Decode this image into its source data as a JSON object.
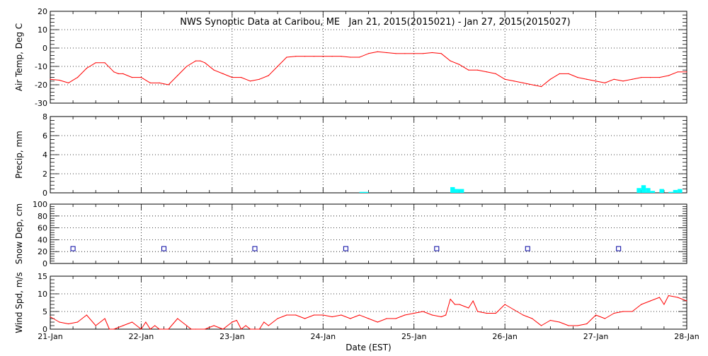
{
  "chart_data": {
    "title": "NWS Synoptic Data at Caribou, ME   Jan 21, 2015(2015021) - Jan 27, 2015(2015027)",
    "xlabel": "Date (EST)",
    "x_ticks": [
      "21-Jan",
      "22-Jan",
      "23-Jan",
      "24-Jan",
      "25-Jan",
      "26-Jan",
      "27-Jan",
      "28-Jan"
    ],
    "x_range_days": [
      21,
      28
    ],
    "grid": true,
    "panels": [
      {
        "id": "airtemp",
        "type": "line",
        "ylabel": "Air Temp, Deg C",
        "ylim": [
          -30,
          20
        ],
        "yticks": [
          20,
          10,
          0,
          -10,
          -20,
          -30
        ],
        "color": "#ff0000",
        "series": [
          {
            "x": [
              21.0,
              21.1,
              21.2,
              21.3,
              21.4,
              21.5,
              21.6,
              21.7,
              21.75,
              21.8,
              21.9,
              22.0,
              22.1,
              22.2,
              22.3,
              22.4,
              22.5,
              22.6,
              22.65,
              22.7,
              22.8,
              22.9,
              23.0,
              23.1,
              23.2,
              23.3,
              23.4,
              23.5,
              23.6,
              23.7,
              23.8,
              23.9,
              24.0,
              24.1,
              24.2,
              24.3,
              24.4,
              24.5,
              24.6,
              24.7,
              24.8,
              24.9,
              25.0,
              25.1,
              25.2,
              25.3,
              25.4,
              25.5,
              25.6,
              25.7,
              25.8,
              25.9,
              26.0,
              26.1,
              26.2,
              26.3,
              26.4,
              26.5,
              26.6,
              26.7,
              26.8,
              26.9,
              27.0,
              27.1,
              27.2,
              27.3,
              27.4,
              27.5,
              27.6,
              27.7,
              27.8,
              27.9,
              28.0
            ],
            "values": [
              -17,
              -17.5,
              -19,
              -16,
              -11,
              -8,
              -8,
              -13,
              -14,
              -14,
              -16,
              -16,
              -19,
              -19,
              -20,
              -15,
              -10,
              -7,
              -7,
              -8,
              -12,
              -14,
              -16,
              -16,
              -18,
              -17,
              -15,
              -10,
              -5,
              -4.5,
              -4.5,
              -4.5,
              -4.5,
              -4.5,
              -4.5,
              -5,
              -5,
              -3,
              -2,
              -2.5,
              -3,
              -3,
              -3,
              -3,
              -2.5,
              -3,
              -7,
              -9,
              -12,
              -12,
              -13,
              -14,
              -17,
              -18,
              -19,
              -20,
              -21,
              -17,
              -14,
              -14,
              -16,
              -17,
              -18,
              -19,
              -17,
              -18,
              -17,
              -16,
              -16,
              -16,
              -15,
              -13,
              -13
            ]
          }
        ]
      },
      {
        "id": "precip",
        "type": "bar",
        "ylabel": "Precip, mm",
        "ylim": [
          0,
          8
        ],
        "yticks": [
          8,
          6,
          4,
          2,
          0
        ],
        "color": "#00ffff",
        "bar_width_days": 0.05,
        "series": [
          {
            "x": [
              24.4,
              24.45,
              25.4,
              25.45,
              25.5,
              27.45,
              27.5,
              27.55,
              27.6,
              27.7,
              27.8,
              27.85,
              27.9
            ],
            "values": [
              0.1,
              0.1,
              0.6,
              0.4,
              0.4,
              0.5,
              0.8,
              0.5,
              0.2,
              0.4,
              0.1,
              0.3,
              0.4
            ]
          }
        ]
      },
      {
        "id": "snowdepth",
        "type": "scatter",
        "ylabel": "Snow Dep, cm",
        "ylim": [
          0,
          100
        ],
        "yticks": [
          100,
          80,
          60,
          40,
          20,
          0
        ],
        "color": "#0000a0",
        "series": [
          {
            "x": [
              21.25,
              22.25,
              23.25,
              24.25,
              25.25,
              26.25,
              27.25
            ],
            "values": [
              25,
              25,
              25,
              25,
              25,
              25,
              25
            ]
          }
        ]
      },
      {
        "id": "windspd",
        "type": "line",
        "ylabel": "Wind Spd, m/s",
        "ylim": [
          0,
          15
        ],
        "yticks": [
          15,
          10,
          5,
          0
        ],
        "color": "#ff0000",
        "series": [
          {
            "x": [
              21.0,
              21.1,
              21.2,
              21.3,
              21.4,
              21.5,
              21.6,
              21.65,
              21.7,
              21.8,
              21.9,
              22.0,
              22.05,
              22.1,
              22.15,
              22.2,
              22.3,
              22.4,
              22.5,
              22.55,
              22.6,
              22.7,
              22.8,
              22.9,
              23.0,
              23.05,
              23.1,
              23.15,
              23.2,
              23.25,
              23.3,
              23.35,
              23.4,
              23.5,
              23.6,
              23.7,
              23.8,
              23.9,
              24.0,
              24.1,
              24.2,
              24.3,
              24.4,
              24.5,
              24.6,
              24.7,
              24.8,
              24.9,
              25.0,
              25.1,
              25.2,
              25.3,
              25.35,
              25.4,
              25.45,
              25.5,
              25.6,
              25.65,
              25.7,
              25.8,
              25.9,
              26.0,
              26.1,
              26.2,
              26.3,
              26.4,
              26.5,
              26.6,
              26.7,
              26.8,
              26.9,
              27.0,
              27.1,
              27.2,
              27.3,
              27.4,
              27.5,
              27.6,
              27.7,
              27.75,
              27.8,
              27.9,
              28.0
            ],
            "values": [
              3.5,
              2,
              1.5,
              2,
              4,
              1,
              3,
              0,
              0,
              1,
              2,
              0,
              2,
              0,
              1,
              0,
              0,
              3,
              1,
              0,
              0,
              0,
              1,
              0,
              2,
              2.5,
              0,
              1,
              0,
              0,
              0,
              2,
              1,
              3,
              4,
              4,
              3,
              4,
              4,
              3.5,
              4,
              3,
              4,
              3,
              2,
              3,
              3,
              4,
              4.5,
              5,
              4,
              3.5,
              4,
              8.5,
              7,
              7,
              6,
              8,
              5,
              4.5,
              4.5,
              7,
              5.5,
              4,
              3,
              1,
              2.5,
              2,
              1,
              1,
              1.5,
              4,
              3,
              4.5,
              5,
              5,
              7,
              8,
              9,
              7,
              9.5,
              9,
              8
            ]
          }
        ]
      }
    ]
  }
}
